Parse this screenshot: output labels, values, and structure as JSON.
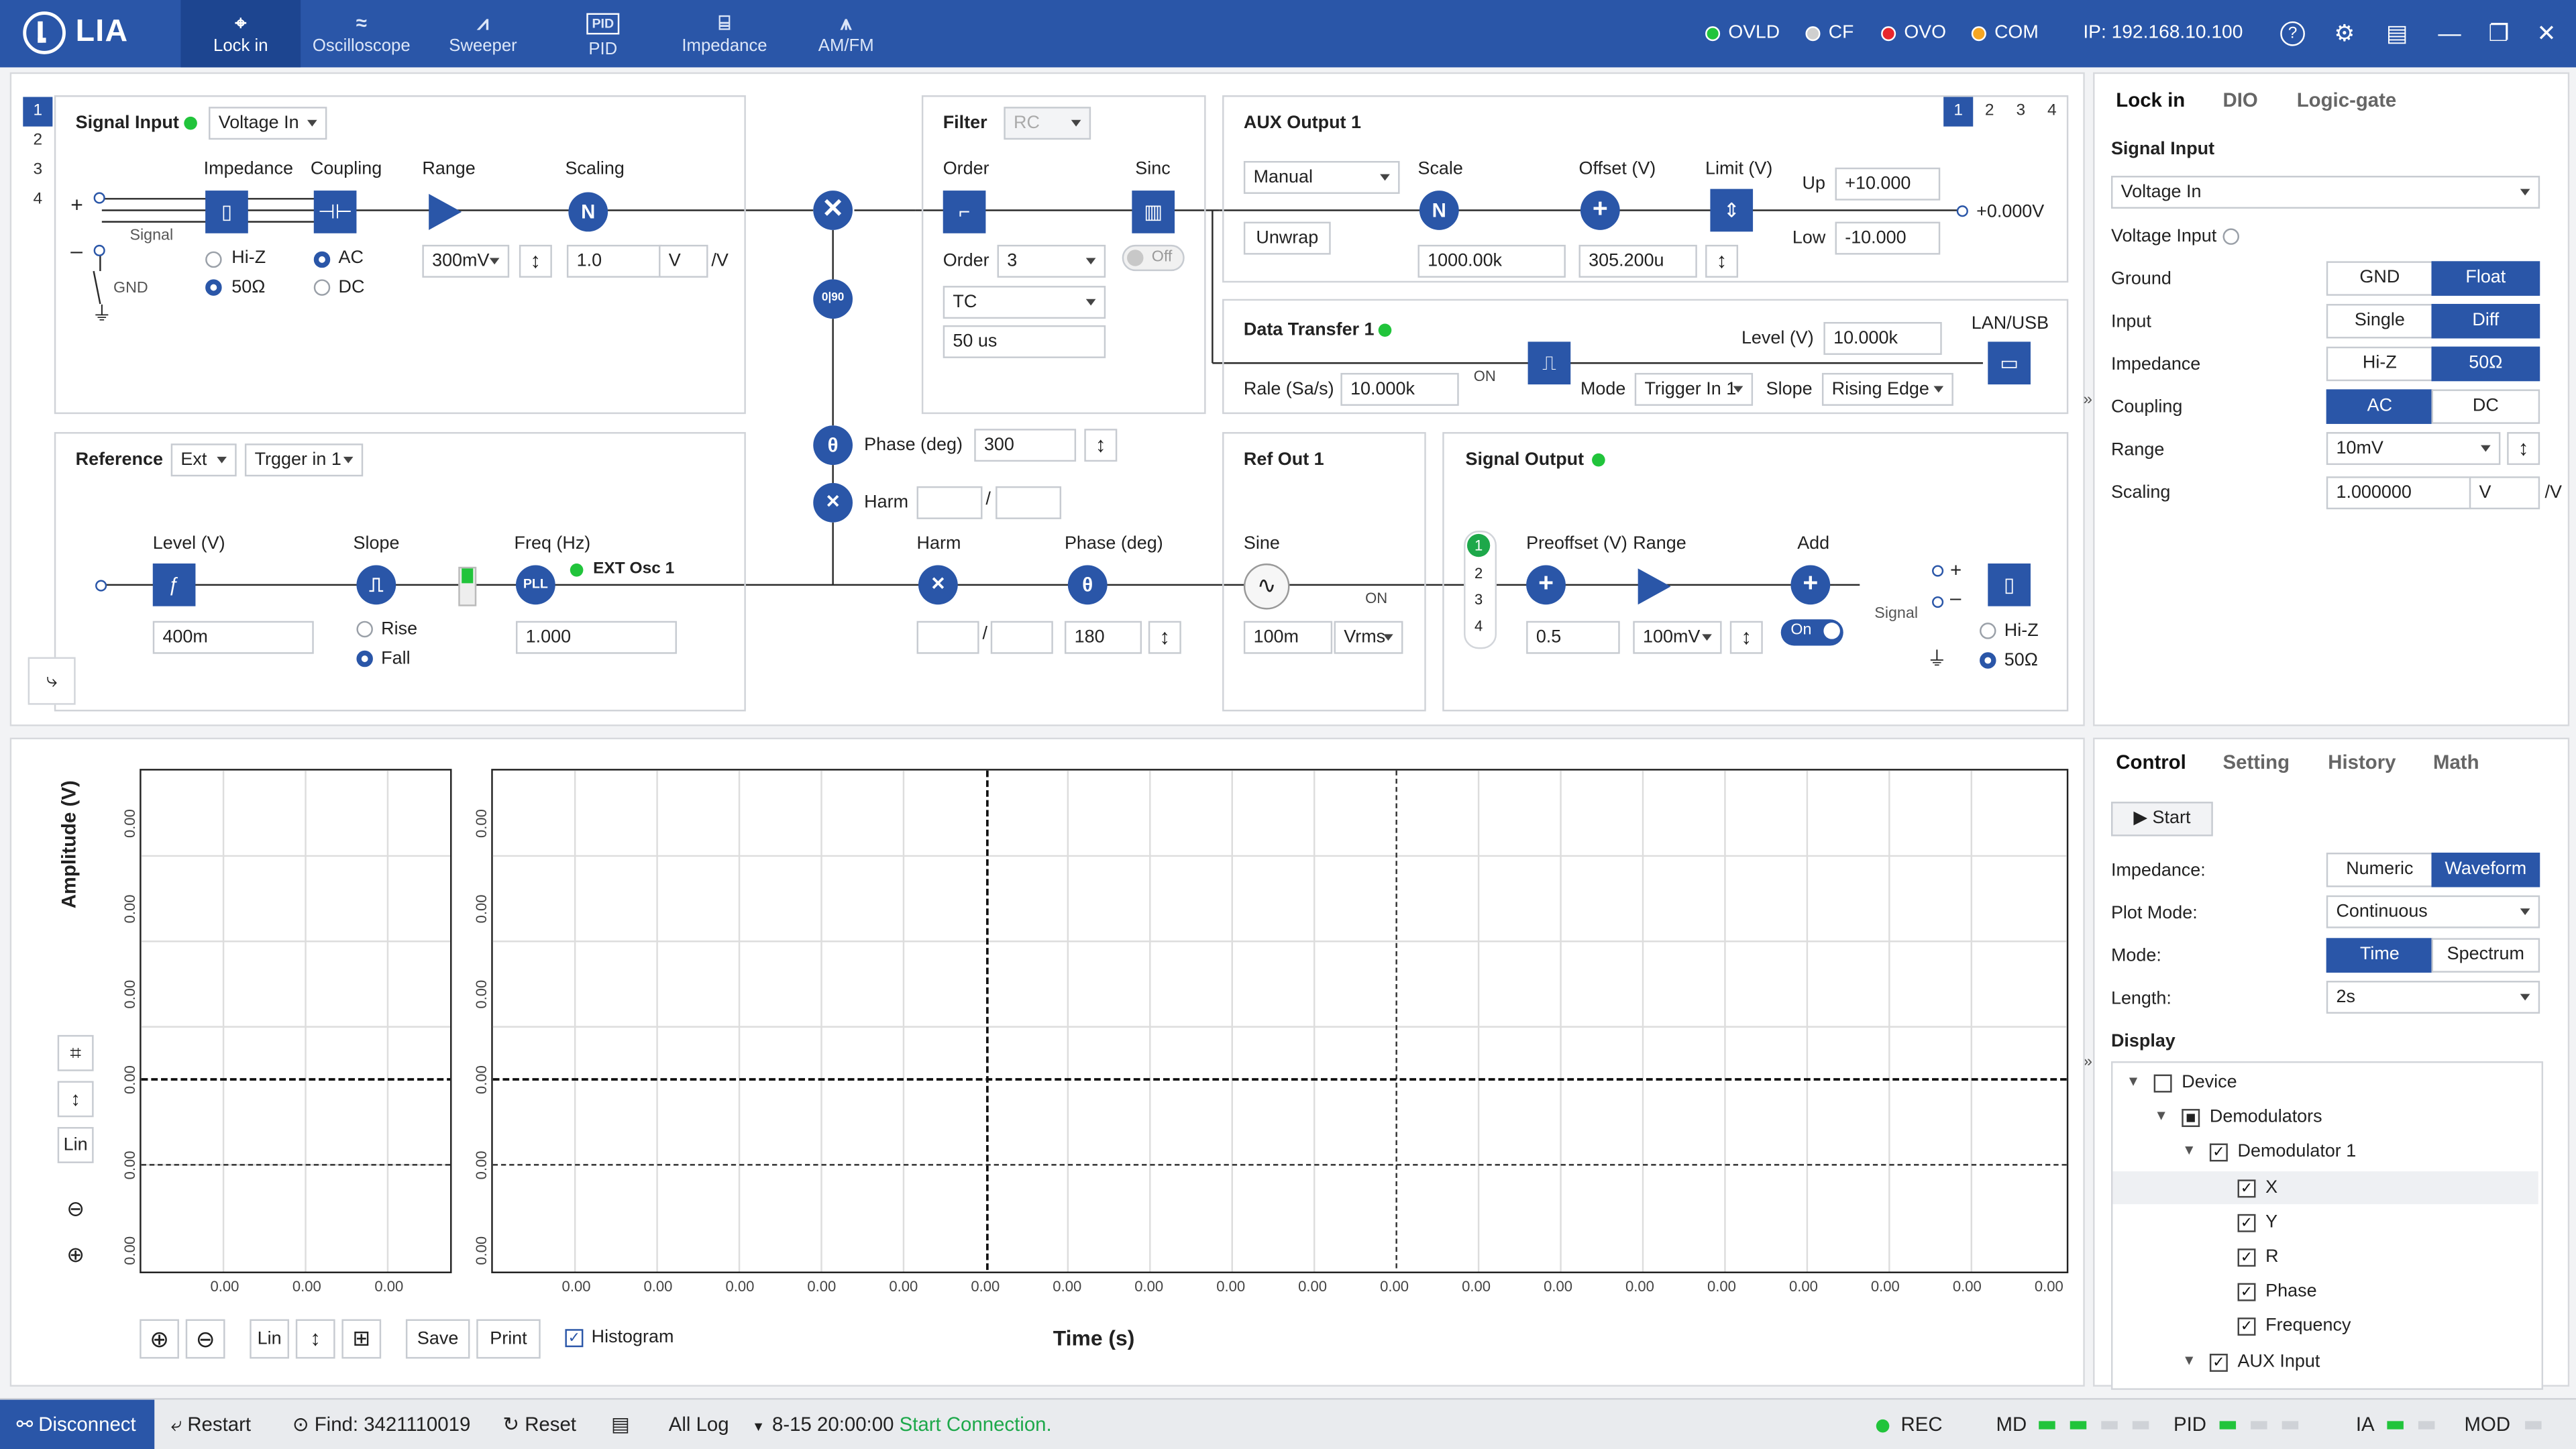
{
  "app": {
    "name": "LIA",
    "ip": "IP: 192.168.10.100"
  },
  "nav": [
    {
      "label": "Lock in",
      "icon": "lockin-icon",
      "glyph": "⌖"
    },
    {
      "label": "Oscilloscope",
      "icon": "oscilloscope-icon",
      "glyph": "≈"
    },
    {
      "label": "Sweeper",
      "icon": "sweeper-icon",
      "glyph": "⩘"
    },
    {
      "label": "PID",
      "icon": "pid-icon",
      "glyph": "PID"
    },
    {
      "label": "Impedance",
      "icon": "impedance-icon",
      "glyph": "⌸"
    },
    {
      "label": "AM/FM",
      "icon": "amfm-icon",
      "glyph": "⩚"
    }
  ],
  "status": [
    {
      "label": "OVLD",
      "color": "#21c43b"
    },
    {
      "label": "CF",
      "color": "#cfcfcf"
    },
    {
      "label": "OVO",
      "color": "#e8262c"
    },
    {
      "label": "COM",
      "color": "#f5a623"
    }
  ],
  "channels": [
    "1",
    "2",
    "3",
    "4"
  ],
  "signal_input": {
    "title": "Signal Input",
    "mode": "Voltage In",
    "impedance": "Impedance",
    "coupling": "Coupling",
    "range": "Range",
    "scaling": "Scaling",
    "signal": "Signal",
    "gnd": "GND",
    "hiz": "Hi-Z",
    "z50": "50Ω",
    "ac": "AC",
    "dc": "DC",
    "range_value": "300mV",
    "scaling_value": "1.0",
    "scaling_unit": "V",
    "per_unit": "/V"
  },
  "filter": {
    "title": "Filter",
    "type": "RC",
    "order_label": "Order",
    "sinc_label": "Sinc",
    "order_value": "3",
    "filter_kind": "TC",
    "time": "50 us",
    "sinc_state": "Off"
  },
  "aux_output": {
    "title": "AUX Output 1",
    "tabs": [
      "1",
      "2",
      "3",
      "4"
    ],
    "mode": "Manual",
    "unwrap": "Unwrap",
    "scale_label": "Scale",
    "offset_label": "Offset (V)",
    "limit_label": "Limit (V)",
    "scale_value": "1000.00k",
    "offset_value": "305.200u",
    "up_label": "Up",
    "up_value": "+10.000",
    "low_label": "Low",
    "low_value": "-10.000",
    "output_value": "+0.000V"
  },
  "data_transfer": {
    "title": "Data Transfer 1",
    "level_label": "Level (V)",
    "level_value": "10.000k",
    "lanusb": "LAN/USB",
    "rate_label": "Rale (Sa/s)",
    "rate_value": "10.000k",
    "on": "ON",
    "mode_label": "Mode",
    "mode_value": "Trigger In 1",
    "slope_label": "Slope",
    "slope_value": "Rising Edge"
  },
  "phase": {
    "label": "Phase (deg)",
    "value": "300",
    "harm_label": "Harm",
    "div": "/",
    "ph90": "0|90"
  },
  "reference": {
    "title": "Reference",
    "source": "Ext",
    "trigger": "Trgger in 1",
    "level_label": "Level (V)",
    "level_value": "400m",
    "slope_label": "Slope",
    "rise": "Rise",
    "fall": "Fall",
    "freq_label": "Freq (Hz)",
    "freq_value": "1.000",
    "osc": "EXT Osc 1",
    "pll": "PLL",
    "harm_label": "Harm",
    "phase_label": "Phase (deg)",
    "phase_value": "180",
    "div": "/"
  },
  "ref_out": {
    "title": "Ref Out 1",
    "sine": "Sine",
    "on": "ON",
    "amp": "100m",
    "unit": "Vrms"
  },
  "signal_output": {
    "title": "Signal Output",
    "channels": [
      "1",
      "2",
      "3",
      "4"
    ],
    "preoffset_label": "Preoffset (V)",
    "range_label": "Range",
    "add_label": "Add",
    "preoffset_value": "0.5",
    "range_value": "100mV",
    "on": "On",
    "signal": "Signal",
    "hiz": "Hi-Z",
    "z50": "50Ω"
  },
  "right_top": {
    "tabs": [
      "Lock in",
      "DIO",
      "Logic-gate"
    ],
    "section": "Signal Input",
    "input_mode": "Voltage In",
    "voltage_input": "Voltage Input",
    "rows": [
      {
        "label": "Ground",
        "a": "GND",
        "b": "Float",
        "on": "b"
      },
      {
        "label": "Input",
        "a": "Single",
        "b": "Diff",
        "on": "b"
      },
      {
        "label": "Impedance",
        "a": "Hi-Z",
        "b": "50Ω",
        "on": "b"
      },
      {
        "label": "Coupling",
        "a": "AC",
        "b": "DC",
        "on": "a"
      }
    ],
    "range_label": "Range",
    "range_value": "10mV",
    "scaling_label": "Scaling",
    "scaling_value": "1.000000",
    "scaling_unit": "V",
    "per_unit": "/V"
  },
  "right_bottom": {
    "tabs": [
      "Control",
      "Setting",
      "History",
      "Math"
    ],
    "start": "Start",
    "rows": [
      {
        "label": "Impedance:",
        "a": "Numeric",
        "b": "Waveform",
        "on": "b"
      }
    ],
    "plot_mode_label": "Plot Mode:",
    "plot_mode_value": "Continuous",
    "mode_label": "Mode:",
    "mode_a": "Time",
    "mode_b": "Spectrum",
    "length_label": "Length:",
    "length_value": "2s",
    "display_label": "Display",
    "tree": [
      {
        "label": "Device",
        "level": 0,
        "state": "empty",
        "arrow": true
      },
      {
        "label": "Demodulators",
        "level": 1,
        "state": "partial",
        "arrow": true
      },
      {
        "label": "Demodulator 1",
        "level": 2,
        "state": "checked",
        "arrow": true
      },
      {
        "label": "X",
        "level": 3,
        "state": "checked",
        "arrow": false,
        "selected": true
      },
      {
        "label": "Y",
        "level": 3,
        "state": "checked",
        "arrow": false
      },
      {
        "label": "R",
        "level": 3,
        "state": "checked",
        "arrow": false
      },
      {
        "label": "Phase",
        "level": 3,
        "state": "checked",
        "arrow": false
      },
      {
        "label": "Frequency",
        "level": 3,
        "state": "checked",
        "arrow": false
      },
      {
        "label": "AUX Input",
        "level": 2,
        "state": "checked",
        "arrow": true
      }
    ]
  },
  "plot": {
    "ylabel": "Amplitude (V)",
    "xlabel": "Time (s)",
    "ytick": "0.00",
    "xtick": "0.00",
    "small_xticks": 3,
    "main_xticks": 19,
    "yticks": 6,
    "lin": "Lin",
    "save": "Save",
    "print": "Print",
    "histogram": "Histogram"
  },
  "bottom": {
    "disconnect": "Disconnect",
    "restart": "Restart",
    "find": "Find: 3421110019",
    "reset": "Reset",
    "log_filter": "All Log",
    "log_time": "8-15 20:00:00",
    "log_msg": "Start Connection.",
    "rec": "REC",
    "md": "MD",
    "pid": "PID",
    "ia": "IA",
    "mod": "MOD"
  }
}
